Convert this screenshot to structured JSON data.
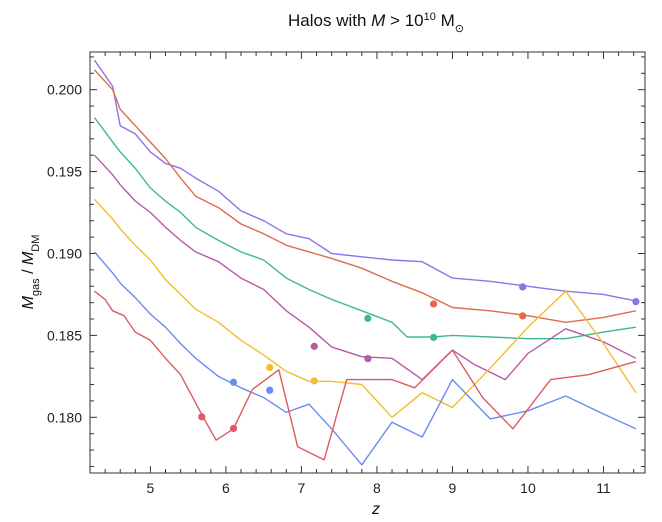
{
  "chart_data": {
    "type": "line",
    "title": {
      "prefix": "Halos with ",
      "var": "M",
      "mid": " > 10",
      "exp": "10",
      "unit": " M",
      "unit_sub": "⊙"
    },
    "xlabel": "z",
    "ylabel": {
      "num_var": "M",
      "num_sub": "gas",
      "sep": " / ",
      "den_var": "M",
      "den_sub": "DM"
    },
    "xlim": [
      4.2,
      11.55
    ],
    "ylim": [
      0.1766,
      0.2023
    ],
    "xticks": [
      5,
      6,
      7,
      8,
      9,
      10,
      11
    ],
    "xtick_labels": [
      "5",
      "6",
      "7",
      "8",
      "9",
      "10",
      "11"
    ],
    "yticks": [
      0.18,
      0.185,
      0.19,
      0.195,
      0.2
    ],
    "ytick_labels": [
      "0.180",
      "0.185",
      "0.190",
      "0.195",
      "0.200"
    ],
    "grid": false,
    "series": [
      {
        "color": "#8b74e8",
        "x": [
          4.26,
          4.5,
          4.6,
          4.8,
          5.0,
          5.2,
          5.4,
          5.6,
          5.9,
          6.2,
          6.5,
          6.8,
          7.1,
          7.4,
          7.8,
          8.2,
          8.6,
          9.0,
          9.5,
          10.0,
          10.5,
          11.0,
          11.43
        ],
        "y": [
          0.2018,
          0.2002,
          0.1978,
          0.1973,
          0.1962,
          0.1955,
          0.1952,
          0.1946,
          0.1938,
          0.1926,
          0.192,
          0.1912,
          0.1909,
          0.19,
          0.1898,
          0.1896,
          0.1895,
          0.1885,
          0.1883,
          0.188,
          0.1877,
          0.1875,
          0.1871
        ],
        "markers_x": [
          9.93,
          11.43
        ],
        "markers_y": [
          0.18796,
          0.18706
        ]
      },
      {
        "color": "#e06b4f",
        "x": [
          4.26,
          4.5,
          4.6,
          4.8,
          5.0,
          5.2,
          5.4,
          5.6,
          5.9,
          6.2,
          6.5,
          6.8,
          7.1,
          7.4,
          7.8,
          8.2,
          8.6,
          9.0,
          9.5,
          10.0,
          10.5,
          11.0,
          11.43
        ],
        "y": [
          0.2012,
          0.2,
          0.1988,
          0.1978,
          0.1968,
          0.1958,
          0.1946,
          0.1935,
          0.1928,
          0.1918,
          0.1912,
          0.1905,
          0.1901,
          0.1897,
          0.1891,
          0.1883,
          0.1876,
          0.1867,
          0.1865,
          0.1862,
          0.1858,
          0.1861,
          0.1865
        ],
        "markers_x": [
          8.75,
          9.93
        ],
        "markers_y": [
          0.18692,
          0.18619
        ]
      },
      {
        "color": "#3fb88e",
        "x": [
          4.26,
          4.5,
          4.6,
          4.8,
          5.0,
          5.2,
          5.4,
          5.6,
          5.9,
          6.2,
          6.5,
          6.8,
          7.1,
          7.4,
          7.8,
          8.2,
          8.4,
          8.75,
          9.0,
          9.5,
          10.0,
          10.5,
          11.0,
          11.43
        ],
        "y": [
          0.1983,
          0.1968,
          0.1962,
          0.1952,
          0.194,
          0.1932,
          0.1925,
          0.1916,
          0.1908,
          0.1901,
          0.1896,
          0.1885,
          0.1878,
          0.1872,
          0.1865,
          0.1858,
          0.1849,
          0.1849,
          0.185,
          0.1849,
          0.1848,
          0.1848,
          0.1852,
          0.1855
        ],
        "markers_x": [
          7.88,
          8.75
        ],
        "markers_y": [
          0.18604,
          0.18488
        ]
      },
      {
        "color": "#b55aa8",
        "x": [
          4.26,
          4.5,
          4.6,
          4.8,
          5.0,
          5.2,
          5.4,
          5.6,
          5.9,
          6.2,
          6.5,
          6.8,
          7.1,
          7.4,
          7.8,
          8.2,
          8.6,
          9.0,
          9.3,
          9.7,
          10.0,
          10.5,
          11.0,
          11.43
        ],
        "y": [
          0.196,
          0.1948,
          0.1942,
          0.1932,
          0.1925,
          0.1916,
          0.1908,
          0.1901,
          0.1895,
          0.1885,
          0.1878,
          0.1865,
          0.1855,
          0.1843,
          0.1837,
          0.1836,
          0.1823,
          0.1841,
          0.1832,
          0.1823,
          0.1839,
          0.1854,
          0.1846,
          0.1836
        ],
        "markers_x": [
          7.17,
          7.88
        ],
        "markers_y": [
          0.18433,
          0.18358
        ]
      },
      {
        "color": "#f0be2e",
        "x": [
          4.26,
          4.5,
          4.6,
          4.8,
          5.0,
          5.2,
          5.4,
          5.6,
          5.9,
          6.2,
          6.5,
          6.8,
          7.1,
          7.4,
          7.8,
          8.2,
          8.6,
          9.0,
          9.5,
          10.0,
          10.5,
          11.0,
          11.43
        ],
        "y": [
          0.1933,
          0.1921,
          0.1915,
          0.1905,
          0.1896,
          0.1884,
          0.1875,
          0.1866,
          0.1858,
          0.1847,
          0.1838,
          0.1828,
          0.1822,
          0.1822,
          0.182,
          0.18,
          0.1815,
          0.1806,
          0.183,
          0.1855,
          0.1877,
          0.1845,
          0.1815
        ],
        "markers_x": [
          6.58,
          7.17
        ],
        "markers_y": [
          0.18304,
          0.18222
        ]
      },
      {
        "color": "#6a8cf0",
        "x": [
          4.26,
          4.5,
          4.6,
          4.8,
          5.0,
          5.2,
          5.4,
          5.6,
          5.9,
          6.2,
          6.5,
          6.8,
          7.1,
          7.4,
          7.8,
          8.2,
          8.6,
          9.0,
          9.5,
          10.0,
          10.5,
          11.0,
          11.43
        ],
        "y": [
          0.1901,
          0.1888,
          0.1882,
          0.1873,
          0.1863,
          0.1855,
          0.1845,
          0.1836,
          0.1825,
          0.1818,
          0.1812,
          0.1803,
          0.1808,
          0.1793,
          0.1771,
          0.1797,
          0.1788,
          0.1823,
          0.1799,
          0.1804,
          0.1813,
          0.1802,
          0.1793
        ],
        "markers_x": [
          6.1,
          6.58
        ],
        "markers_y": [
          0.18214,
          0.18165
        ]
      },
      {
        "color": "#dc5a64",
        "x": [
          4.26,
          4.4,
          4.5,
          4.65,
          4.8,
          5.0,
          5.2,
          5.4,
          5.7,
          5.87,
          6.1,
          6.35,
          6.7,
          6.95,
          7.3,
          7.6,
          7.9,
          8.2,
          8.5,
          9.0,
          9.4,
          9.8,
          10.3,
          10.8,
          11.43
        ],
        "y": [
          0.1877,
          0.1872,
          0.1865,
          0.1862,
          0.1852,
          0.1847,
          0.1836,
          0.1826,
          0.18,
          0.1786,
          0.1793,
          0.1817,
          0.1829,
          0.1782,
          0.1774,
          0.1823,
          0.1823,
          0.1823,
          0.1818,
          0.1841,
          0.1812,
          0.1793,
          0.1823,
          0.1826,
          0.1834
        ],
        "markers_x": [
          5.68,
          6.1
        ],
        "markers_y": [
          0.18003,
          0.17932
        ]
      }
    ]
  }
}
